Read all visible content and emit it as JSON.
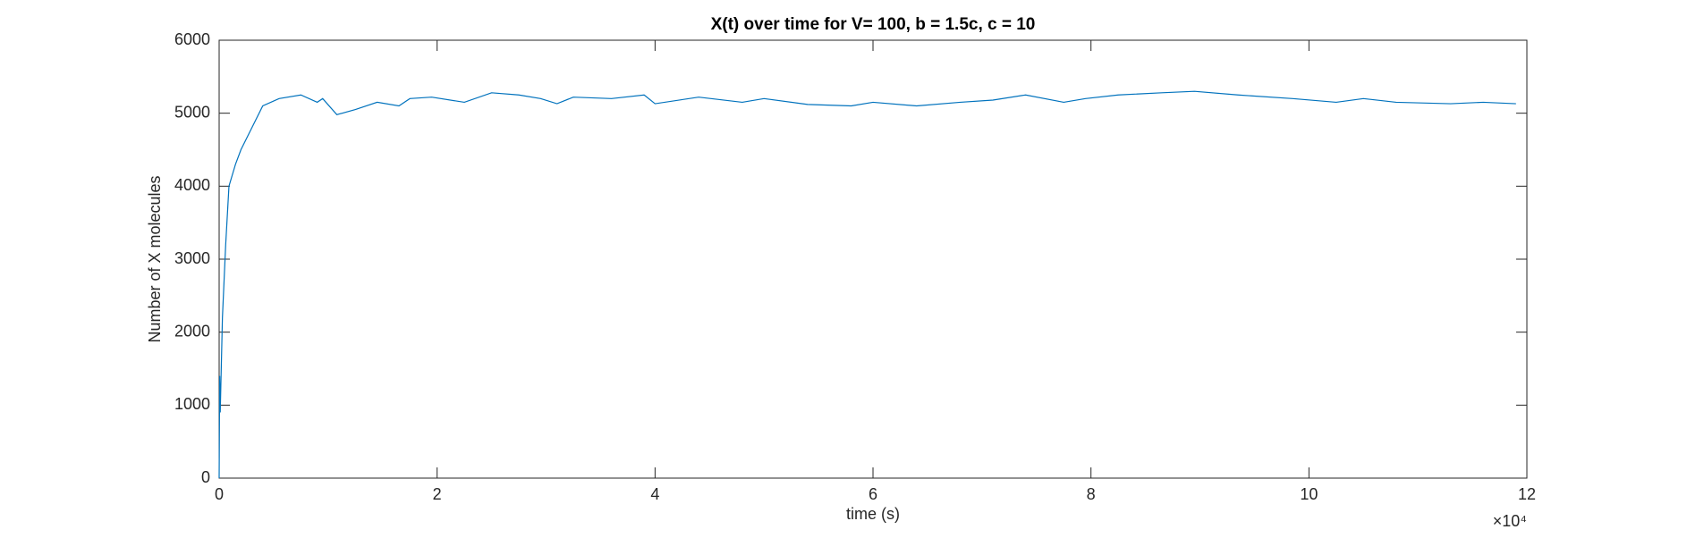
{
  "chart_data": {
    "type": "line",
    "title": "X(t) over time for V= 100, b = 1.5c, c = 10",
    "x_label": "time (s)",
    "y_label": "Number of X molecules",
    "x_multiplier": "×10⁴",
    "x": [
      0,
      0.005,
      0.01,
      0.03,
      0.06,
      0.09,
      0.15,
      0.2,
      0.3,
      0.4,
      0.55,
      0.75,
      0.9,
      0.95,
      1.08,
      1.25,
      1.45,
      1.65,
      1.75,
      1.95,
      2.25,
      2.5,
      2.75,
      2.95,
      3.1,
      3.25,
      3.6,
      3.9,
      4.0,
      4.4,
      4.8,
      5.0,
      5.4,
      5.8,
      6.0,
      6.4,
      6.8,
      7.1,
      7.4,
      7.75,
      7.95,
      8.25,
      8.65,
      8.95,
      9.35,
      9.85,
      10.25,
      10.5,
      10.8,
      11.3,
      11.6,
      11.9
    ],
    "series": [
      {
        "name": "X(t)",
        "color": "#0072bd",
        "values": [
          0,
          1400,
          900,
          2200,
          3200,
          4000,
          4300,
          4500,
          4800,
          5100,
          5200,
          5250,
          5150,
          5200,
          4980,
          5050,
          5150,
          5100,
          5200,
          5220,
          5150,
          5280,
          5250,
          5200,
          5130,
          5220,
          5200,
          5250,
          5130,
          5220,
          5150,
          5200,
          5120,
          5100,
          5150,
          5100,
          5150,
          5180,
          5250,
          5150,
          5200,
          5250,
          5280,
          5300,
          5250,
          5200,
          5150,
          5200,
          5150,
          5130,
          5150,
          5130
        ]
      }
    ],
    "xlim": [
      0,
      12
    ],
    "xticks": [
      0,
      2,
      4,
      6,
      8,
      10,
      12
    ],
    "ylim": [
      0,
      6000
    ],
    "yticks": [
      0,
      1000,
      2000,
      3000,
      4000,
      5000,
      6000
    ],
    "grid": false
  }
}
